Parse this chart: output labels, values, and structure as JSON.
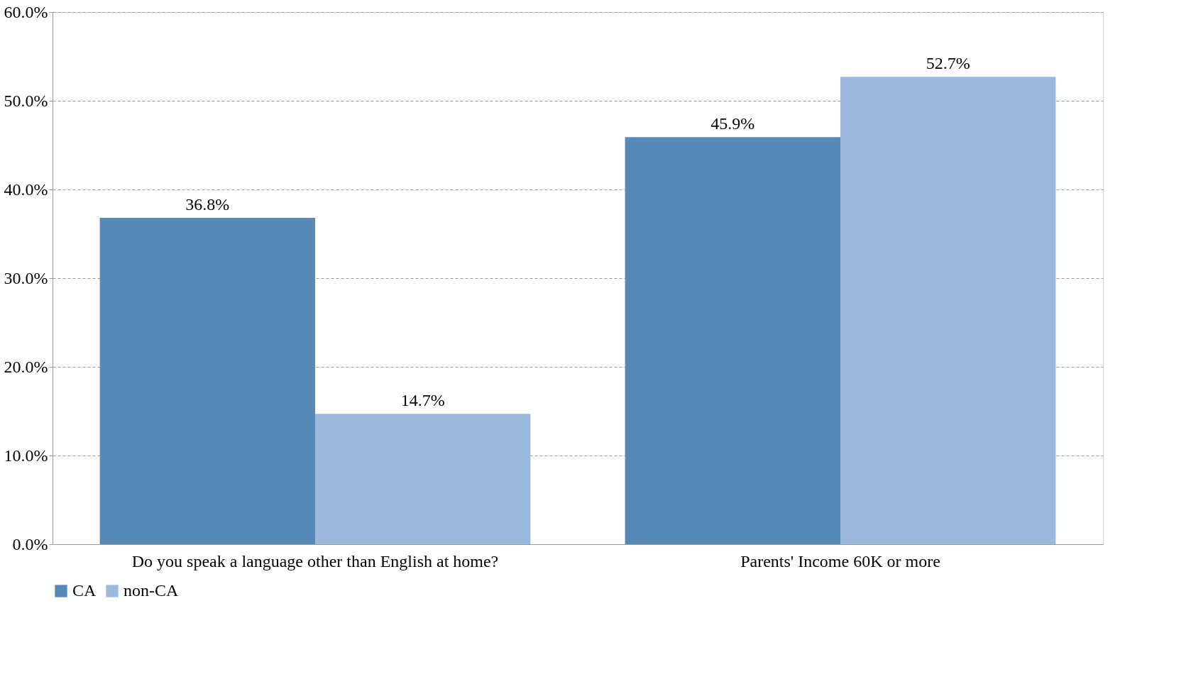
{
  "chart_data": {
    "type": "bar",
    "categories": [
      "Do you speak a language other than English at home?",
      "Parents' Income 60K or more"
    ],
    "series": [
      {
        "name": "CA",
        "color": "#5689b8",
        "values": [
          36.8,
          45.9
        ],
        "value_labels": [
          "36.8%",
          "45.9%"
        ]
      },
      {
        "name": "non-CA",
        "color": "#9ab9dc",
        "values": [
          14.7,
          52.7
        ],
        "value_labels": [
          "14.7%",
          "52.7%"
        ]
      }
    ],
    "ylim": [
      0,
      60
    ],
    "yticks": [
      {
        "value": 0,
        "label": "0.0%"
      },
      {
        "value": 10,
        "label": "10.0%"
      },
      {
        "value": 20,
        "label": "20.0%"
      },
      {
        "value": 30,
        "label": "30.0%"
      },
      {
        "value": 40,
        "label": "40.0%"
      },
      {
        "value": 50,
        "label": "50.0%"
      },
      {
        "value": 60,
        "label": "60.0%"
      }
    ],
    "grid": "y",
    "legend": "bottom"
  }
}
